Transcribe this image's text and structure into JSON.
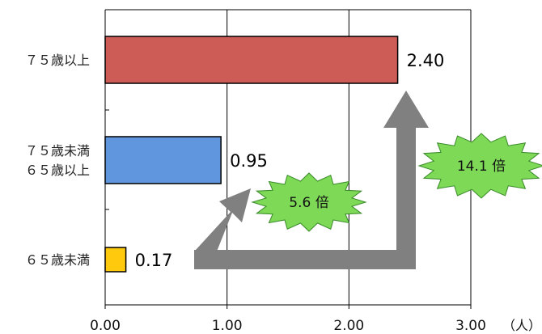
{
  "chart_data": {
    "type": "bar",
    "orientation": "horizontal",
    "categories": [
      [
        "７５歳以上"
      ],
      [
        "７５歳未満",
        "６５歳以上"
      ],
      [
        "６５歳未満"
      ]
    ],
    "values": [
      2.4,
      0.95,
      0.17
    ],
    "value_labels": [
      "2.40",
      "0.95",
      "0.17"
    ],
    "bar_colors": [
      "#cd5c57",
      "#5f96de",
      "#ffc90e"
    ],
    "xlim": [
      0,
      3
    ],
    "xticks": [
      0,
      1,
      2,
      3
    ],
    "xtick_labels": [
      "0.00",
      "1.00",
      "2.00",
      "3.00"
    ],
    "x_unit": "（人）",
    "grid": true,
    "legend": "none",
    "annotations": [
      {
        "text": "5.6 倍",
        "from_category": 2,
        "to_category": 1
      },
      {
        "text": "14.1 倍",
        "from_category": 2,
        "to_category": 0
      }
    ],
    "annotation_color": "#7ed957",
    "arrow_color": "#808080"
  }
}
